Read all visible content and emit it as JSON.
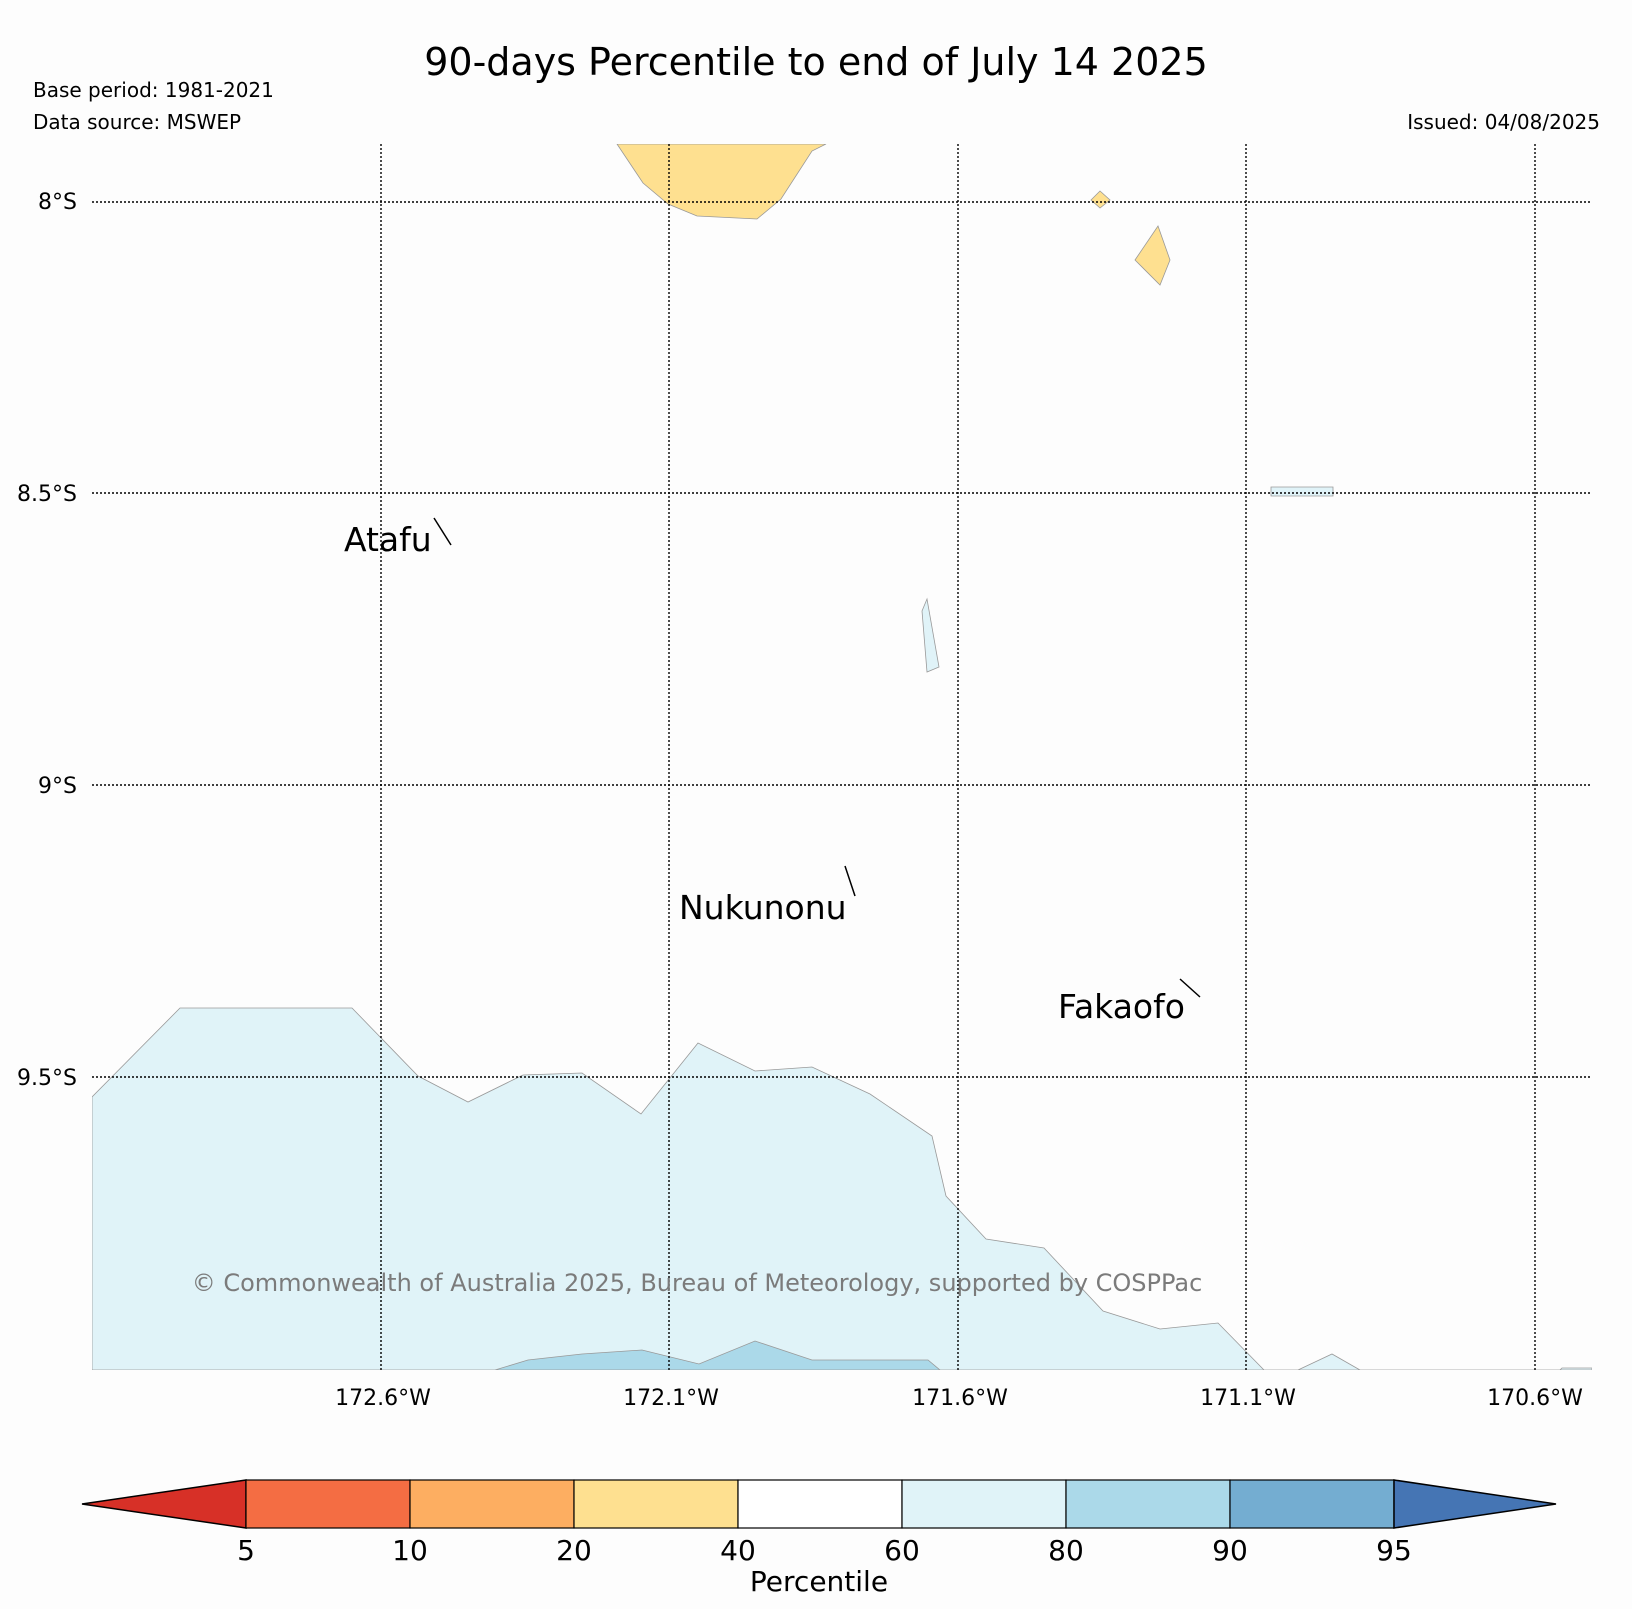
{
  "header": {
    "title": "90-days Percentile to end of July 14 2025",
    "base_period": "Base period: 1981-2021",
    "data_source": "Data source: MSWEP",
    "issued": "Issued: 04/08/2025"
  },
  "map": {
    "lat_labels": [
      "8°S",
      "8.5°S",
      "9°S",
      "9.5°S"
    ],
    "lon_labels": [
      "172.6°W",
      "172.1°W",
      "171.6°W",
      "171.1°W",
      "170.6°W"
    ],
    "places": [
      "Atafu",
      "Nukunonu",
      "Fakaofo"
    ],
    "copyright": "© Commonwealth of Australia 2025, Bureau of Meteorology, supported by COSPPac"
  },
  "legend": {
    "title": "Percentile",
    "ticks": [
      "5",
      "10",
      "20",
      "40",
      "60",
      "80",
      "90",
      "95"
    ],
    "colors": [
      "#d73027",
      "#f46d43",
      "#fdae61",
      "#fee090",
      "#ffffff",
      "#e0f3f8",
      "#abd9e9",
      "#74add1",
      "#4575b4"
    ]
  }
}
